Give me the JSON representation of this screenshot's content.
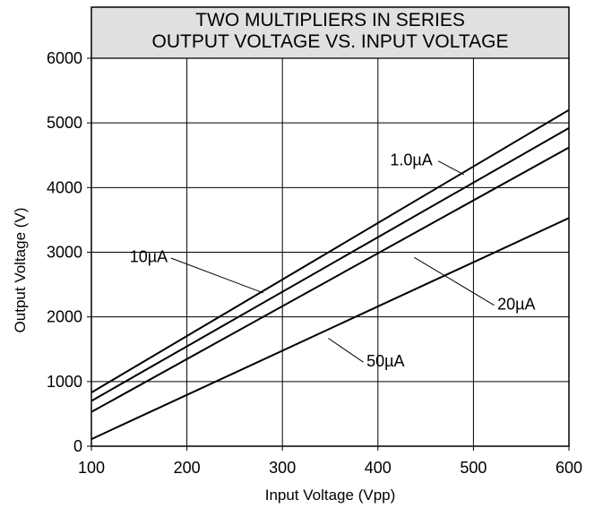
{
  "chart_data": {
    "type": "line",
    "title": [
      "TWO MULTIPLIERS IN SERIES",
      "OUTPUT VOLTAGE VS. INPUT VOLTAGE"
    ],
    "xlabel": "Input Voltage (Vpp)",
    "ylabel": "Output Voltage (V)",
    "xlim": [
      100,
      600
    ],
    "ylim": [
      0,
      6000
    ],
    "xticks": [
      100,
      200,
      300,
      400,
      500,
      600
    ],
    "yticks": [
      0,
      1000,
      2000,
      3000,
      4000,
      5000,
      6000
    ],
    "grid": true,
    "title_background": "#e0e0e0",
    "series": [
      {
        "name": "1.0µA",
        "x": [
          100,
          600
        ],
        "y": [
          830,
          5200
        ]
      },
      {
        "name": "10µA",
        "x": [
          100,
          600
        ],
        "y": [
          700,
          4920
        ]
      },
      {
        "name": "20µA",
        "x": [
          100,
          600
        ],
        "y": [
          530,
          4620
        ]
      },
      {
        "name": "50µA",
        "x": [
          100,
          600
        ],
        "y": [
          110,
          3530
        ]
      }
    ],
    "annotations": [
      {
        "text": "1.0µA",
        "series": "1.0µA",
        "text_at": [
          435,
          4410
        ],
        "pointer_to": [
          490,
          4200
        ]
      },
      {
        "text": "10µA",
        "series": "10µA",
        "text_at": [
          160,
          2910
        ],
        "pointer_to": [
          280,
          2370
        ]
      },
      {
        "text": "20µA",
        "series": "20µA",
        "text_at": [
          545,
          2180
        ],
        "pointer_to": [
          438,
          2920
        ]
      },
      {
        "text": "50µA",
        "series": "50µA",
        "text_at": [
          408,
          1300
        ],
        "pointer_to": [
          348,
          1670
        ]
      }
    ]
  }
}
